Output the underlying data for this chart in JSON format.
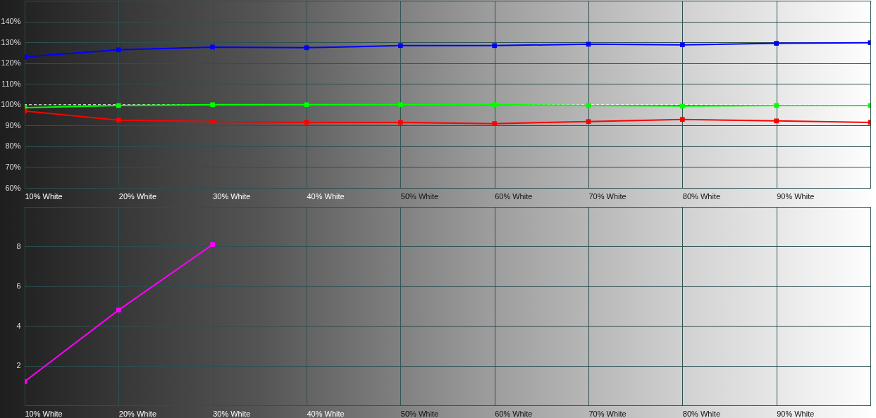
{
  "chart_data": [
    {
      "type": "line",
      "categories": [
        "10% White",
        "20% White",
        "30% White",
        "40% White",
        "50% White",
        "60% White",
        "70% White",
        "80% White",
        "90% White",
        null
      ],
      "series": [
        {
          "color": "#0000ff",
          "values": [
            123,
            126.4,
            127.7,
            127.4,
            128.4,
            128.4,
            129.1,
            128.8,
            129.5,
            129.8
          ]
        },
        {
          "color": "#00ff00",
          "values": [
            98.6,
            99.6,
            100,
            100,
            100,
            100,
            99.6,
            99.3,
            99.6,
            99.6
          ]
        },
        {
          "color": "#ff0000",
          "values": [
            97,
            92.6,
            91.9,
            91.5,
            91.5,
            90.9,
            91.9,
            92.9,
            92.2,
            91.5
          ]
        }
      ],
      "ylim": [
        60,
        150
      ],
      "yticks": [
        {
          "value": 60,
          "label": "60%"
        },
        {
          "value": 70,
          "label": "70%"
        },
        {
          "value": 80,
          "label": "80%"
        },
        {
          "value": 90,
          "label": "90%"
        },
        {
          "value": 100,
          "label": "100%"
        },
        {
          "value": 110,
          "label": "110%"
        },
        {
          "value": 120,
          "label": "120%"
        },
        {
          "value": 130,
          "label": "130%"
        },
        {
          "value": 140,
          "label": "140%"
        }
      ],
      "ref_lines": [
        {
          "axis": "y",
          "value": 100,
          "color": "#ffffff",
          "line_style": "dashed"
        }
      ],
      "grid": true,
      "marker": "square"
    },
    {
      "type": "line",
      "categories": [
        "10% White",
        "20% White",
        "30% White",
        "40% White",
        "50% White",
        "60% White",
        "70% White",
        "80% White",
        "90% White",
        null
      ],
      "series": [
        {
          "color": "#ff00ff",
          "values": [
            1.2,
            4.8,
            8.1,
            null,
            null,
            null,
            null,
            null,
            null,
            null
          ]
        }
      ],
      "ylim": [
        0,
        10
      ],
      "yticks": [
        2,
        4,
        6,
        8
      ],
      "grid": true,
      "marker": "square"
    }
  ]
}
